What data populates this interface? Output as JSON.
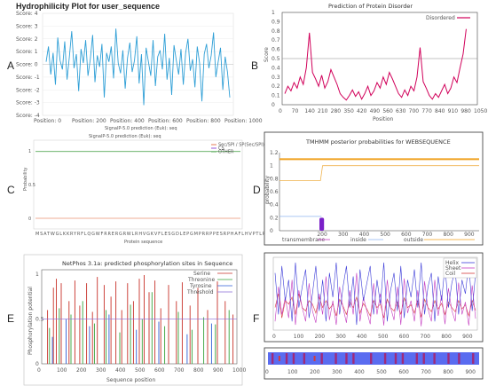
{
  "panel_letters": [
    "A",
    "B",
    "C",
    "D",
    "E",
    "F"
  ],
  "colors": {
    "hydro": "#2f9fd6",
    "disorder": "#d1005a",
    "helix": "#3b3bd8",
    "sheet": "#c43bc0",
    "coil": "#d63b3b",
    "tm_top": "#f0a01e",
    "tm_purple": "#7a20c8",
    "tm_blue": "#8fb4f0"
  },
  "chart_data": [
    {
      "id": "A",
      "type": "line",
      "title": "Hydrophilicity Plot for user_sequence",
      "ylim": [
        -4,
        4
      ],
      "xlim": [
        0,
        1000
      ],
      "yticks": [
        "Score: 4",
        "Score: 3",
        "Score: 2",
        "Score: 1",
        "Score: 0",
        "Score: -1",
        "Score: -2",
        "Score: -3",
        "Score: -4"
      ],
      "xticks": [
        "Position: 0",
        "Position: 200",
        "Position: 400",
        "Position: 600",
        "Position: 800",
        "Position: 1000"
      ],
      "caption": "SignalP-5.0 prediction (Euk): seq",
      "series": [
        {
          "values": [
            0.2,
            1.4,
            -0.8,
            0.9,
            -1.6,
            2.1,
            0.3,
            -0.4,
            1.8,
            -1.2,
            0.6,
            2.6,
            -0.3,
            0.8,
            -2.1,
            1.2,
            0.1,
            1.9,
            -0.9,
            0.4,
            2.3,
            -1.4,
            0.7,
            -0.2,
            1.6,
            -2.6,
            0.9,
            0.2,
            1.4,
            -1.1,
            2.8,
            0.1,
            -0.7,
            1.1,
            -1.9,
            0.5,
            1.7,
            -0.6,
            0.3,
            2.2,
            -1.5,
            0.8,
            -3.2,
            1.3,
            0.2,
            -0.9,
            1.9,
            -1.7,
            0.6,
            1.1,
            -0.4,
            2.4,
            -1.2,
            0.5,
            -2.4,
            1.5,
            0.3,
            -0.8,
            1.2,
            -1.6,
            0.9,
            2.0,
            -0.5,
            0.4,
            -1.8,
            1.4,
            0.1,
            -2.9,
            0.8,
            1.6,
            -0.3,
            0.7,
            2.5,
            -1.0,
            0.2,
            1.3,
            -2.0,
            0.6,
            -0.6,
            -2.6
          ]
        }
      ]
    },
    {
      "id": "B",
      "type": "line",
      "title": "Prediction of Protein Disorder",
      "ylabel": "Score",
      "xlabel": "Position",
      "ylim": [
        0,
        1
      ],
      "xlim": [
        0,
        1050
      ],
      "threshold": 0.5,
      "yticks": [
        "0",
        "0.1",
        "0.2",
        "0.3",
        "0.4",
        "0.5",
        "0.6",
        "0.7",
        "0.8",
        "0.9",
        "1"
      ],
      "xticks": [
        "0",
        "70",
        "140",
        "210",
        "280",
        "350",
        "420",
        "490",
        "560",
        "630",
        "700",
        "770",
        "840",
        "910",
        "980",
        "1050"
      ],
      "legend": "Disordered",
      "series": [
        {
          "name": "Disordered",
          "values": [
            0.12,
            0.2,
            0.15,
            0.24,
            0.18,
            0.3,
            0.22,
            0.4,
            0.78,
            0.35,
            0.28,
            0.2,
            0.32,
            0.18,
            0.25,
            0.38,
            0.3,
            0.22,
            0.12,
            0.08,
            0.05,
            0.1,
            0.16,
            0.09,
            0.14,
            0.06,
            0.12,
            0.2,
            0.1,
            0.15,
            0.24,
            0.18,
            0.3,
            0.22,
            0.35,
            0.28,
            0.2,
            0.12,
            0.08,
            0.16,
            0.1,
            0.2,
            0.15,
            0.3,
            0.62,
            0.25,
            0.18,
            0.1,
            0.06,
            0.12,
            0.08,
            0.15,
            0.22,
            0.12,
            0.18,
            0.3,
            0.24,
            0.4,
            0.55,
            0.82
          ]
        }
      ]
    },
    {
      "id": "C",
      "type": "line",
      "caption": "SignalP-5.0 prediction (Euk): seq",
      "ylabel": "Probability",
      "xlabel": "Protein sequence",
      "ylim": [
        0,
        1
      ],
      "yticks": [
        "0",
        "0.5",
        "1"
      ],
      "legend": [
        "Sec/SPI / SP(Sec/SPI)",
        "CS",
        "OTHER"
      ],
      "series": [
        {
          "name": "Sec/SPI / SP(Sec/SPI)",
          "values": [
            0.01
          ]
        },
        {
          "name": "CS",
          "values": [
            0.0
          ]
        },
        {
          "name": "OTHER",
          "values": [
            0.99
          ]
        }
      ],
      "sequence": "MSATWGLKKRYRFLQGWFRRERGRWLRHVGKVFLESGDLEPGMPRRPPESRPHAFLHVPTLRTTHPS"
    },
    {
      "id": "D",
      "type": "area",
      "title": "TMHMM posterior probabilities for WEBSEQUENCE",
      "ylabel": "probability",
      "ylim": [
        0,
        1.2
      ],
      "xlim": [
        0,
        950
      ],
      "yticks": [
        "0",
        "0.2",
        "0.4",
        "0.6",
        "0.8",
        "1",
        "1.2"
      ],
      "xticks": [
        "200",
        "300",
        "400",
        "500",
        "600",
        "700",
        "800",
        "900"
      ],
      "legend": [
        "transmembrane",
        "inside",
        "outside"
      ],
      "tm_segment": {
        "start": 190,
        "end": 212,
        "peak": 0.2
      },
      "inside_before": {
        "end": 200,
        "value": 0.22
      },
      "outside_before": {
        "end": 200,
        "value": 0.77
      },
      "outside_after": 1.0,
      "top_line": 1.1
    },
    {
      "id": "E",
      "type": "bar",
      "title": "NetPhos 3.1a: predicted phosphorylation sites in Sequence",
      "ylabel": "Phosphorylation potential",
      "xlabel": "Sequence position",
      "ylim": [
        0,
        1.05
      ],
      "xlim": [
        0,
        1000
      ],
      "threshold": 0.5,
      "yticks": [
        "0",
        "0.5",
        "1"
      ],
      "xticks": [
        "0",
        "100",
        "200",
        "300",
        "400",
        "500",
        "600",
        "700",
        "800",
        "900",
        "1000"
      ],
      "legend": [
        "Serine",
        "Threonine",
        "Tyrosine",
        "Threshold"
      ],
      "sites": {
        "serine": [
          [
            30,
            0.6
          ],
          [
            60,
            0.85
          ],
          [
            75,
            0.95
          ],
          [
            100,
            0.9
          ],
          [
            140,
            0.7
          ],
          [
            170,
            0.93
          ],
          [
            195,
            0.65
          ],
          [
            230,
            0.9
          ],
          [
            260,
            0.58
          ],
          [
            285,
            0.97
          ],
          [
            320,
            0.88
          ],
          [
            355,
            0.75
          ],
          [
            380,
            0.92
          ],
          [
            410,
            0.6
          ],
          [
            440,
            0.9
          ],
          [
            470,
            0.7
          ],
          [
            500,
            0.95
          ],
          [
            525,
            0.99
          ],
          [
            550,
            0.8
          ],
          [
            580,
            0.93
          ],
          [
            610,
            0.62
          ],
          [
            650,
            0.88
          ],
          [
            690,
            0.7
          ],
          [
            720,
            0.91
          ],
          [
            760,
            0.65
          ],
          [
            800,
            0.85
          ],
          [
            850,
            0.6
          ],
          [
            900,
            0.92
          ],
          [
            940,
            0.7
          ],
          [
            980,
            0.55
          ]
        ],
        "threonine": [
          [
            40,
            0.4
          ],
          [
            90,
            0.62
          ],
          [
            150,
            0.55
          ],
          [
            210,
            0.7
          ],
          [
            270,
            0.45
          ],
          [
            330,
            0.6
          ],
          [
            400,
            0.35
          ],
          [
            455,
            0.66
          ],
          [
            515,
            0.5
          ],
          [
            565,
            0.8
          ],
          [
            630,
            0.42
          ],
          [
            700,
            0.58
          ],
          [
            770,
            0.38
          ],
          [
            830,
            0.52
          ],
          [
            890,
            0.44
          ],
          [
            960,
            0.6
          ]
        ],
        "tyrosine": [
          [
            55,
            0.3
          ],
          [
            125,
            0.5
          ],
          [
            245,
            0.42
          ],
          [
            345,
            0.55
          ],
          [
            485,
            0.38
          ],
          [
            600,
            0.47
          ],
          [
            745,
            0.33
          ],
          [
            870,
            0.45
          ]
        ]
      }
    },
    {
      "id": "F",
      "type": "line",
      "xlim": [
        0,
        950
      ],
      "xticks": [
        "0",
        "100",
        "200",
        "300",
        "400",
        "500",
        "600",
        "700",
        "800",
        "900"
      ],
      "legend": [
        "Helix",
        "Sheet",
        "Coil"
      ],
      "series": [
        {
          "name": "Helix",
          "values": [
            0.8,
            0.2,
            0.9,
            0.4,
            0.7,
            0.1,
            0.95,
            0.3,
            0.6,
            0.85,
            0.15,
            0.5,
            0.9,
            0.25,
            0.7,
            0.1,
            0.8,
            0.45,
            0.95,
            0.2,
            0.6,
            0.9,
            0.3,
            0.75,
            0.05,
            0.85,
            0.4,
            0.65,
            0.9,
            0.2,
            0.7,
            0.35,
            0.95,
            0.1,
            0.55,
            0.8,
            0.25,
            0.9,
            0.15,
            0.7,
            0.45,
            0.85,
            0.3,
            0.95,
            0.2,
            0.6,
            0.8,
            0.1,
            0.75,
            0.4,
            0.9,
            0.3,
            0.65,
            0.85,
            0.2,
            0.7,
            0.5,
            0.95,
            0.25,
            0.8
          ]
        },
        {
          "name": "Sheet",
          "values": [
            0.1,
            0.6,
            0.2,
            0.45,
            0.15,
            0.7,
            0.05,
            0.55,
            0.3,
            0.1,
            0.65,
            0.25,
            0.08,
            0.5,
            0.2,
            0.75,
            0.12,
            0.4,
            0.05,
            0.6,
            0.3,
            0.08,
            0.55,
            0.2,
            0.8,
            0.1,
            0.45,
            0.25,
            0.06,
            0.65,
            0.2,
            0.5,
            0.04,
            0.7,
            0.3,
            0.12,
            0.6,
            0.05,
            0.72,
            0.22,
            0.4,
            0.1,
            0.55,
            0.03,
            0.68,
            0.28,
            0.1,
            0.7,
            0.18,
            0.48,
            0.06,
            0.58,
            0.26,
            0.1,
            0.66,
            0.2,
            0.38,
            0.04,
            0.62,
            0.14
          ]
        },
        {
          "name": "Coil",
          "values": [
            0.3,
            0.5,
            0.15,
            0.4,
            0.35,
            0.45,
            0.2,
            0.5,
            0.3,
            0.25,
            0.4,
            0.35,
            0.22,
            0.45,
            0.3,
            0.4,
            0.28,
            0.35,
            0.18,
            0.42,
            0.32,
            0.2,
            0.38,
            0.3,
            0.45,
            0.22,
            0.36,
            0.28,
            0.18,
            0.4,
            0.3,
            0.35,
            0.15,
            0.42,
            0.3,
            0.25,
            0.38,
            0.2,
            0.44,
            0.3,
            0.34,
            0.22,
            0.4,
            0.16,
            0.42,
            0.3,
            0.24,
            0.4,
            0.28,
            0.36,
            0.2,
            0.38,
            0.3,
            0.24,
            0.4,
            0.28,
            0.34,
            0.18,
            0.4,
            0.26
          ]
        }
      ]
    }
  ]
}
